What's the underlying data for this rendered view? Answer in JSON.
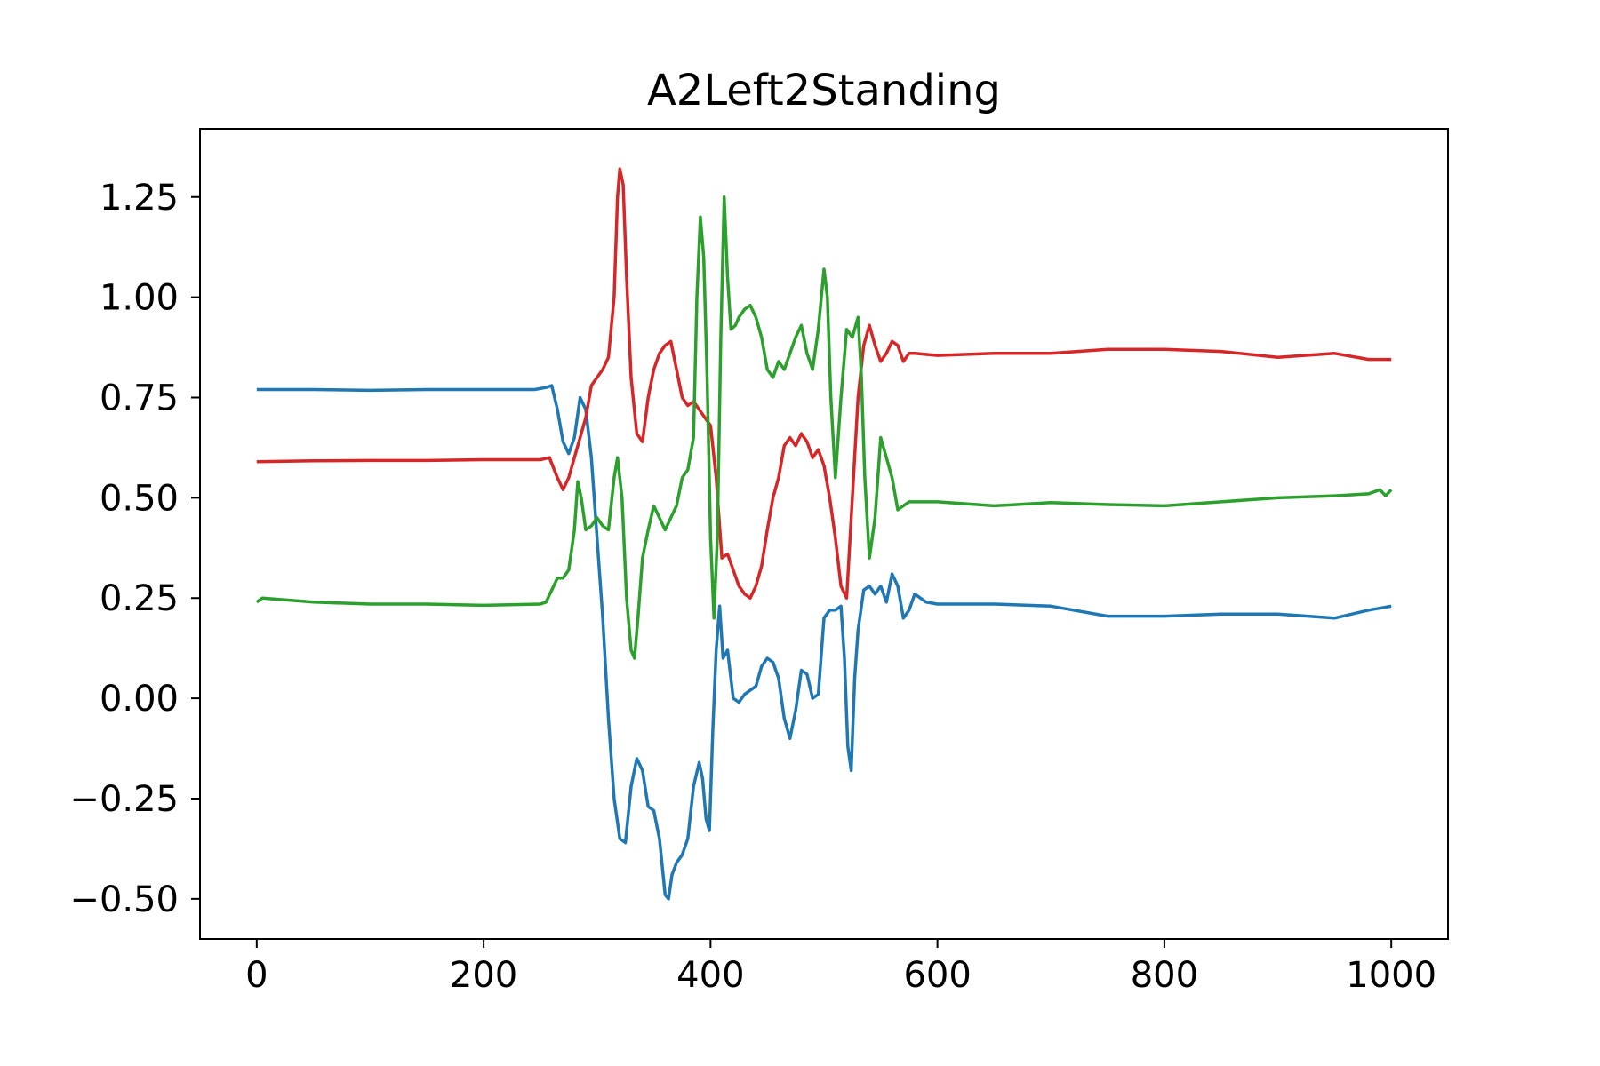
{
  "chart_data": {
    "type": "line",
    "title": "A2Left2Standing",
    "xlabel": "",
    "ylabel": "",
    "xlim": [
      -50,
      1050
    ],
    "ylim": [
      -0.6,
      1.42
    ],
    "x_ticks": [
      0,
      200,
      400,
      600,
      800,
      1000
    ],
    "x_tick_labels": [
      "0",
      "200",
      "400",
      "600",
      "800",
      "1000"
    ],
    "y_ticks": [
      -0.5,
      -0.25,
      0.0,
      0.25,
      0.5,
      0.75,
      1.0,
      1.25
    ],
    "y_tick_labels": [
      "−0.50",
      "−0.25",
      "0.00",
      "0.25",
      "0.50",
      "0.75",
      "1.00",
      "1.25"
    ],
    "grid": false,
    "series": [
      {
        "color": "#1f77b4",
        "points": [
          [
            0,
            0.77
          ],
          [
            50,
            0.77
          ],
          [
            100,
            0.768
          ],
          [
            150,
            0.77
          ],
          [
            200,
            0.77
          ],
          [
            245,
            0.77
          ],
          [
            255,
            0.775
          ],
          [
            260,
            0.78
          ],
          [
            265,
            0.72
          ],
          [
            270,
            0.64
          ],
          [
            275,
            0.61
          ],
          [
            280,
            0.65
          ],
          [
            285,
            0.75
          ],
          [
            290,
            0.72
          ],
          [
            295,
            0.6
          ],
          [
            300,
            0.4
          ],
          [
            305,
            0.2
          ],
          [
            310,
            -0.05
          ],
          [
            315,
            -0.25
          ],
          [
            320,
            -0.35
          ],
          [
            325,
            -0.36
          ],
          [
            330,
            -0.22
          ],
          [
            335,
            -0.15
          ],
          [
            340,
            -0.18
          ],
          [
            345,
            -0.27
          ],
          [
            350,
            -0.28
          ],
          [
            355,
            -0.35
          ],
          [
            360,
            -0.49
          ],
          [
            363,
            -0.5
          ],
          [
            366,
            -0.44
          ],
          [
            370,
            -0.41
          ],
          [
            375,
            -0.39
          ],
          [
            380,
            -0.35
          ],
          [
            385,
            -0.22
          ],
          [
            390,
            -0.16
          ],
          [
            393,
            -0.2
          ],
          [
            396,
            -0.3
          ],
          [
            399,
            -0.33
          ],
          [
            402,
            -0.08
          ],
          [
            405,
            0.12
          ],
          [
            408,
            0.23
          ],
          [
            411,
            0.1
          ],
          [
            415,
            0.12
          ],
          [
            420,
            0.0
          ],
          [
            425,
            -0.01
          ],
          [
            430,
            0.01
          ],
          [
            435,
            0.02
          ],
          [
            440,
            0.03
          ],
          [
            445,
            0.08
          ],
          [
            450,
            0.1
          ],
          [
            455,
            0.09
          ],
          [
            460,
            0.05
          ],
          [
            465,
            -0.05
          ],
          [
            470,
            -0.1
          ],
          [
            475,
            -0.03
          ],
          [
            480,
            0.07
          ],
          [
            485,
            0.06
          ],
          [
            490,
            0.0
          ],
          [
            495,
            0.01
          ],
          [
            500,
            0.2
          ],
          [
            505,
            0.22
          ],
          [
            510,
            0.22
          ],
          [
            515,
            0.23
          ],
          [
            518,
            0.1
          ],
          [
            521,
            -0.12
          ],
          [
            524,
            -0.18
          ],
          [
            527,
            0.05
          ],
          [
            530,
            0.17
          ],
          [
            535,
            0.27
          ],
          [
            540,
            0.28
          ],
          [
            545,
            0.26
          ],
          [
            550,
            0.28
          ],
          [
            555,
            0.24
          ],
          [
            560,
            0.31
          ],
          [
            565,
            0.28
          ],
          [
            570,
            0.2
          ],
          [
            575,
            0.22
          ],
          [
            580,
            0.26
          ],
          [
            590,
            0.24
          ],
          [
            600,
            0.235
          ],
          [
            650,
            0.235
          ],
          [
            700,
            0.23
          ],
          [
            750,
            0.205
          ],
          [
            800,
            0.205
          ],
          [
            850,
            0.21
          ],
          [
            900,
            0.21
          ],
          [
            950,
            0.2
          ],
          [
            980,
            0.22
          ],
          [
            1000,
            0.23
          ]
        ]
      },
      {
        "color": "#d62728",
        "points": [
          [
            0,
            0.59
          ],
          [
            50,
            0.592
          ],
          [
            100,
            0.593
          ],
          [
            150,
            0.593
          ],
          [
            200,
            0.595
          ],
          [
            250,
            0.595
          ],
          [
            258,
            0.6
          ],
          [
            265,
            0.55
          ],
          [
            270,
            0.52
          ],
          [
            275,
            0.55
          ],
          [
            280,
            0.6
          ],
          [
            285,
            0.65
          ],
          [
            290,
            0.7
          ],
          [
            295,
            0.78
          ],
          [
            300,
            0.8
          ],
          [
            305,
            0.82
          ],
          [
            310,
            0.85
          ],
          [
            315,
            1.0
          ],
          [
            318,
            1.25
          ],
          [
            320,
            1.32
          ],
          [
            323,
            1.28
          ],
          [
            326,
            1.05
          ],
          [
            330,
            0.8
          ],
          [
            335,
            0.66
          ],
          [
            340,
            0.64
          ],
          [
            345,
            0.75
          ],
          [
            350,
            0.82
          ],
          [
            355,
            0.86
          ],
          [
            360,
            0.88
          ],
          [
            365,
            0.89
          ],
          [
            370,
            0.82
          ],
          [
            375,
            0.75
          ],
          [
            380,
            0.73
          ],
          [
            385,
            0.74
          ],
          [
            390,
            0.72
          ],
          [
            395,
            0.7
          ],
          [
            400,
            0.68
          ],
          [
            405,
            0.55
          ],
          [
            410,
            0.35
          ],
          [
            415,
            0.36
          ],
          [
            420,
            0.32
          ],
          [
            425,
            0.28
          ],
          [
            430,
            0.26
          ],
          [
            435,
            0.25
          ],
          [
            440,
            0.28
          ],
          [
            445,
            0.33
          ],
          [
            450,
            0.42
          ],
          [
            455,
            0.5
          ],
          [
            460,
            0.55
          ],
          [
            465,
            0.63
          ],
          [
            470,
            0.65
          ],
          [
            475,
            0.63
          ],
          [
            480,
            0.66
          ],
          [
            485,
            0.64
          ],
          [
            490,
            0.6
          ],
          [
            495,
            0.62
          ],
          [
            500,
            0.58
          ],
          [
            505,
            0.5
          ],
          [
            510,
            0.4
          ],
          [
            515,
            0.28
          ],
          [
            520,
            0.25
          ],
          [
            525,
            0.5
          ],
          [
            530,
            0.75
          ],
          [
            535,
            0.88
          ],
          [
            540,
            0.93
          ],
          [
            545,
            0.88
          ],
          [
            550,
            0.84
          ],
          [
            555,
            0.86
          ],
          [
            560,
            0.89
          ],
          [
            565,
            0.88
          ],
          [
            570,
            0.84
          ],
          [
            575,
            0.86
          ],
          [
            580,
            0.86
          ],
          [
            600,
            0.855
          ],
          [
            650,
            0.86
          ],
          [
            700,
            0.86
          ],
          [
            750,
            0.87
          ],
          [
            800,
            0.87
          ],
          [
            850,
            0.865
          ],
          [
            900,
            0.85
          ],
          [
            950,
            0.86
          ],
          [
            980,
            0.845
          ],
          [
            1000,
            0.845
          ]
        ]
      },
      {
        "color": "#2ca02c",
        "points": [
          [
            0,
            0.24
          ],
          [
            5,
            0.25
          ],
          [
            50,
            0.24
          ],
          [
            100,
            0.235
          ],
          [
            150,
            0.235
          ],
          [
            200,
            0.232
          ],
          [
            250,
            0.235
          ],
          [
            255,
            0.24
          ],
          [
            260,
            0.27
          ],
          [
            265,
            0.3
          ],
          [
            270,
            0.3
          ],
          [
            275,
            0.32
          ],
          [
            280,
            0.42
          ],
          [
            283,
            0.54
          ],
          [
            286,
            0.5
          ],
          [
            290,
            0.42
          ],
          [
            295,
            0.43
          ],
          [
            300,
            0.45
          ],
          [
            305,
            0.43
          ],
          [
            310,
            0.42
          ],
          [
            315,
            0.55
          ],
          [
            318,
            0.6
          ],
          [
            322,
            0.5
          ],
          [
            326,
            0.25
          ],
          [
            330,
            0.12
          ],
          [
            333,
            0.1
          ],
          [
            336,
            0.2
          ],
          [
            340,
            0.35
          ],
          [
            345,
            0.42
          ],
          [
            350,
            0.48
          ],
          [
            355,
            0.45
          ],
          [
            360,
            0.42
          ],
          [
            365,
            0.45
          ],
          [
            370,
            0.48
          ],
          [
            375,
            0.55
          ],
          [
            380,
            0.57
          ],
          [
            385,
            0.65
          ],
          [
            388,
            1.0
          ],
          [
            391,
            1.2
          ],
          [
            394,
            1.1
          ],
          [
            397,
            0.8
          ],
          [
            400,
            0.4
          ],
          [
            403,
            0.2
          ],
          [
            406,
            0.4
          ],
          [
            409,
            0.9
          ],
          [
            412,
            1.25
          ],
          [
            415,
            1.05
          ],
          [
            418,
            0.92
          ],
          [
            422,
            0.93
          ],
          [
            425,
            0.95
          ],
          [
            430,
            0.97
          ],
          [
            435,
            0.98
          ],
          [
            440,
            0.95
          ],
          [
            445,
            0.9
          ],
          [
            450,
            0.82
          ],
          [
            455,
            0.8
          ],
          [
            460,
            0.84
          ],
          [
            465,
            0.82
          ],
          [
            470,
            0.86
          ],
          [
            475,
            0.9
          ],
          [
            480,
            0.93
          ],
          [
            485,
            0.86
          ],
          [
            490,
            0.82
          ],
          [
            495,
            0.92
          ],
          [
            500,
            1.07
          ],
          [
            503,
            1.0
          ],
          [
            506,
            0.75
          ],
          [
            510,
            0.55
          ],
          [
            515,
            0.75
          ],
          [
            520,
            0.92
          ],
          [
            525,
            0.9
          ],
          [
            530,
            0.95
          ],
          [
            533,
            0.8
          ],
          [
            536,
            0.55
          ],
          [
            540,
            0.35
          ],
          [
            545,
            0.45
          ],
          [
            550,
            0.65
          ],
          [
            555,
            0.6
          ],
          [
            560,
            0.55
          ],
          [
            565,
            0.47
          ],
          [
            570,
            0.48
          ],
          [
            575,
            0.49
          ],
          [
            580,
            0.49
          ],
          [
            600,
            0.49
          ],
          [
            650,
            0.48
          ],
          [
            700,
            0.488
          ],
          [
            750,
            0.483
          ],
          [
            800,
            0.48
          ],
          [
            850,
            0.49
          ],
          [
            900,
            0.5
          ],
          [
            950,
            0.505
          ],
          [
            980,
            0.51
          ],
          [
            990,
            0.52
          ],
          [
            995,
            0.505
          ],
          [
            1000,
            0.52
          ]
        ]
      }
    ]
  }
}
